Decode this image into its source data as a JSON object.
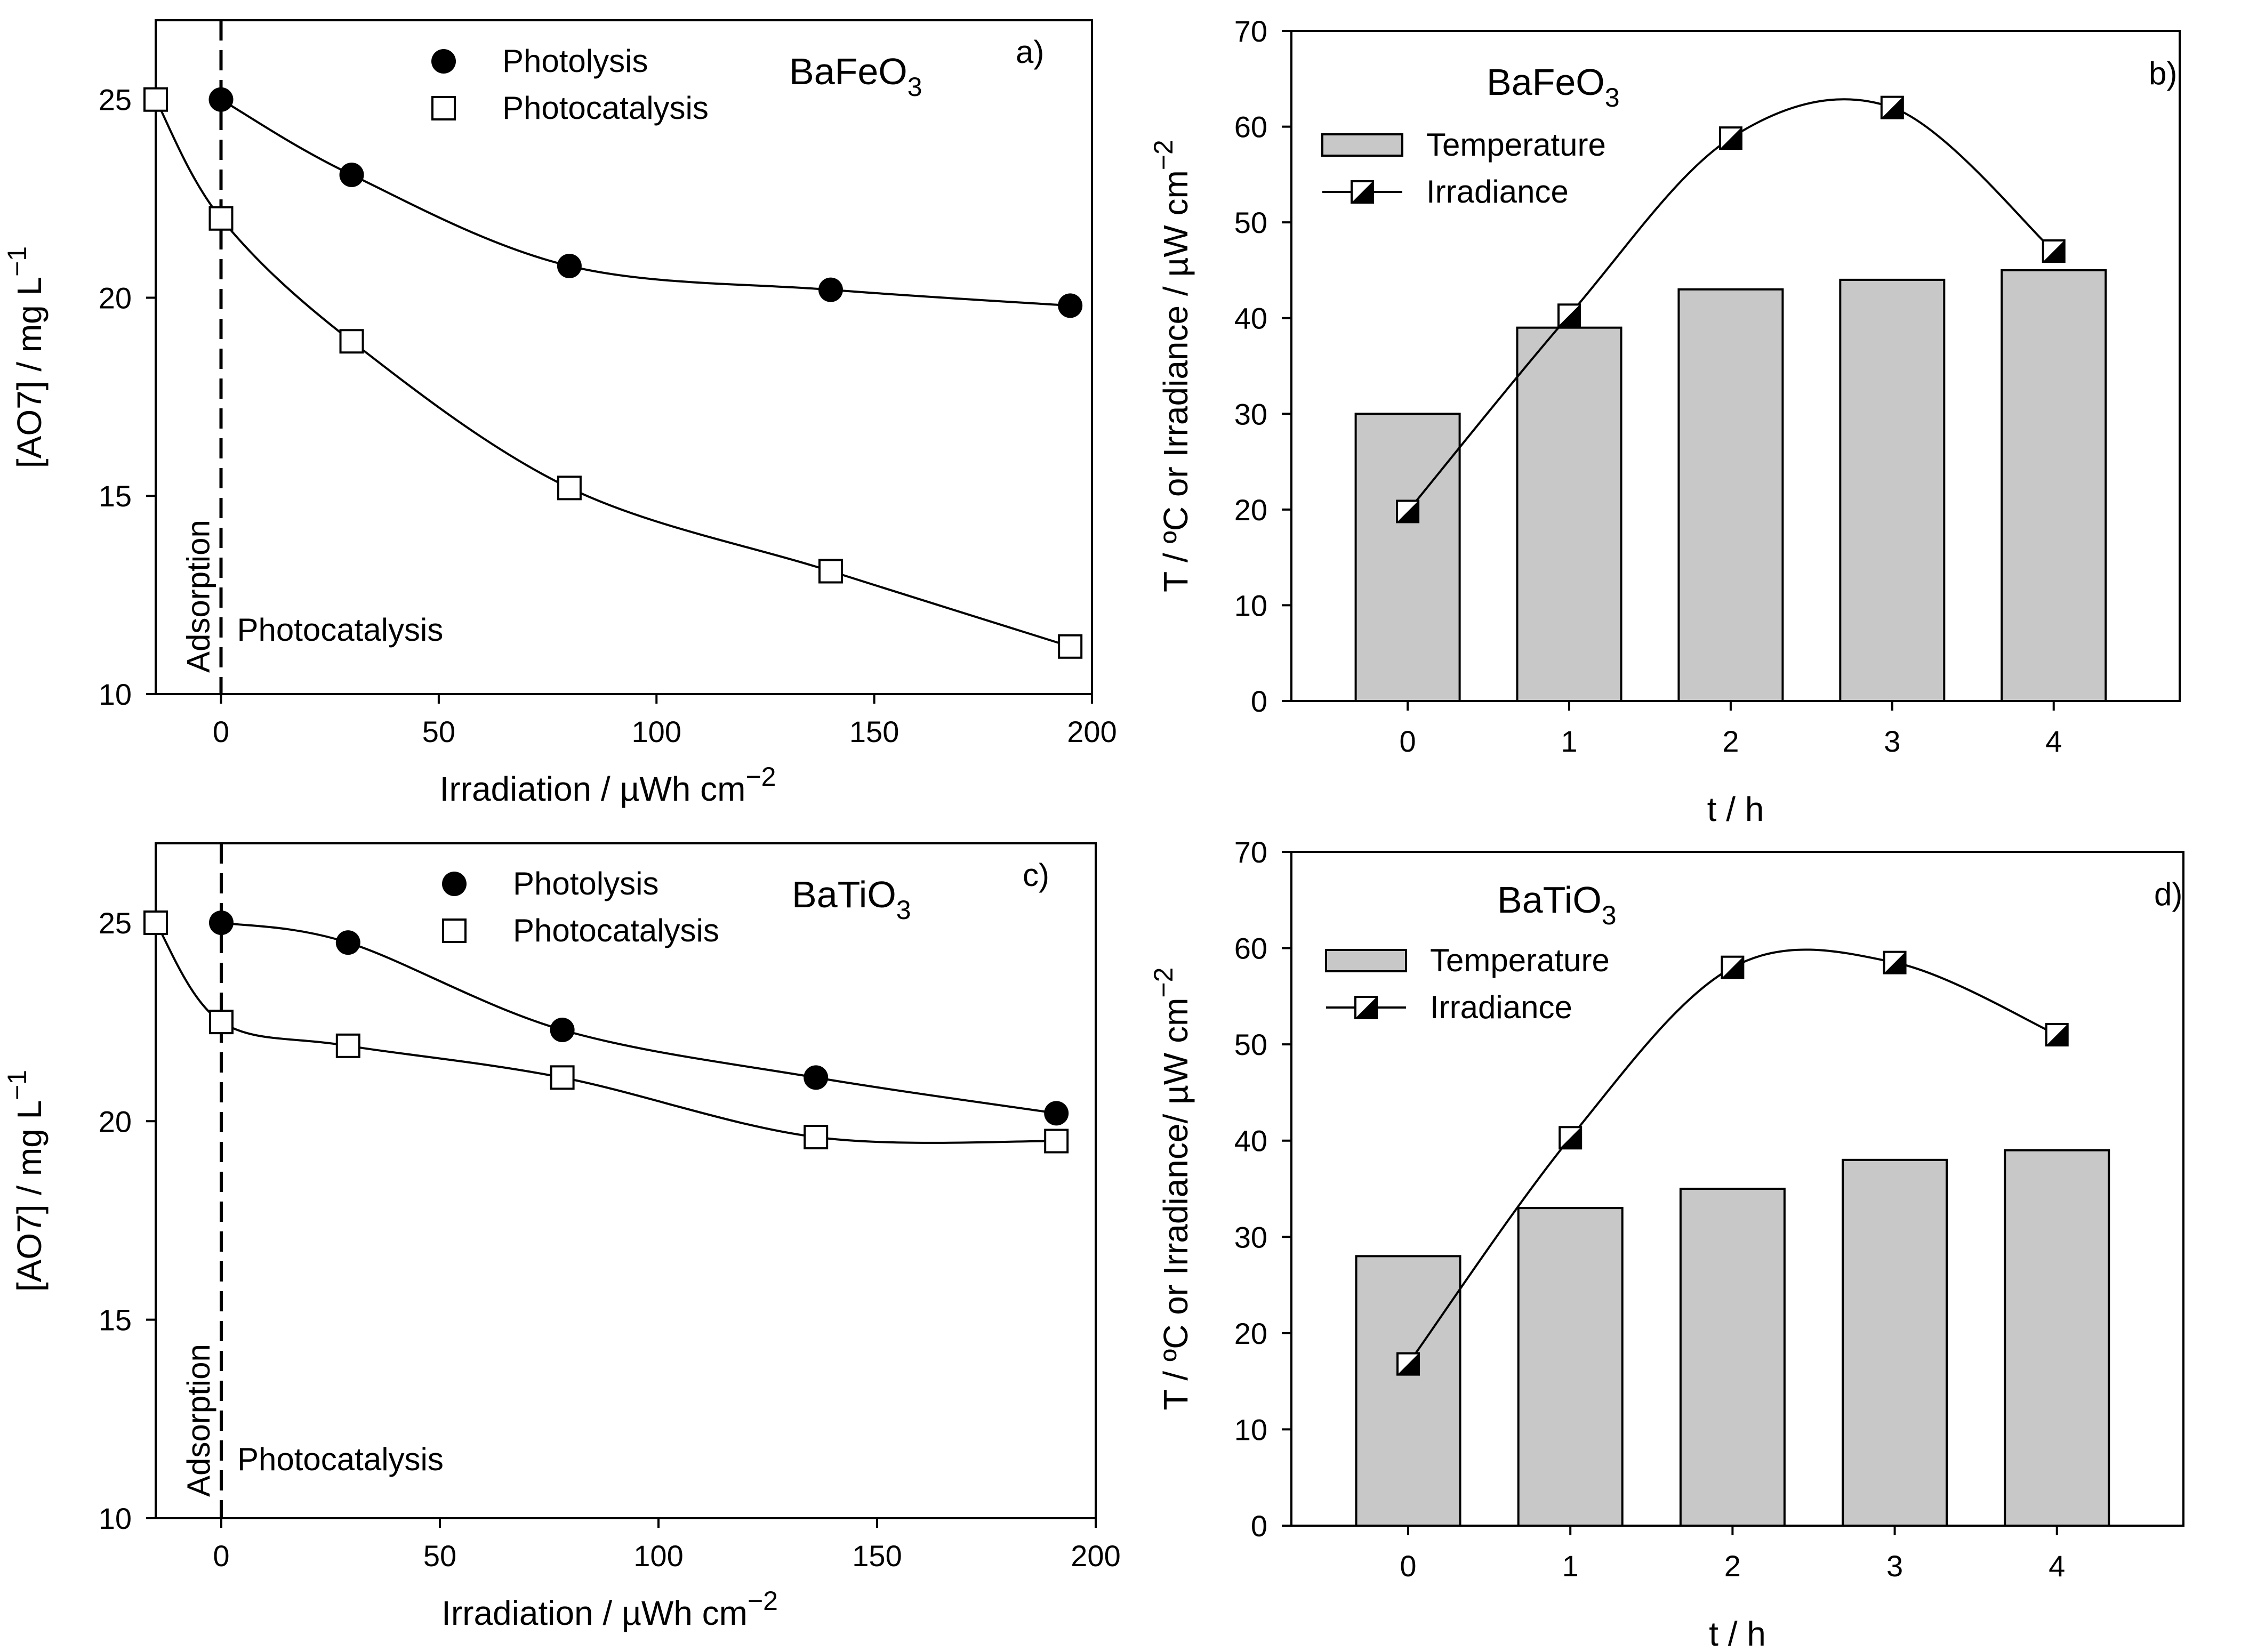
{
  "chart_data": [
    {
      "panel": "a",
      "panel_label": "a)",
      "type": "scatter",
      "material": "BaFeO",
      "material_sub": "3",
      "xlabel": "Irradiation / µWh cm",
      "xlabel_sup": "−2",
      "ylabel": "[AO7] / mg L",
      "ylabel_sup": "−1",
      "xlim": [
        -15,
        200
      ],
      "ylim": [
        10,
        27
      ],
      "xticks": [
        "0",
        "50",
        "100",
        "150",
        "200"
      ],
      "yticks": [
        "10",
        "15",
        "20",
        "25"
      ],
      "annotations": {
        "left": "Adsorption",
        "right": "Photocatalysis"
      },
      "series": [
        {
          "name": "Photolysis",
          "marker": "filled-circle",
          "x": [
            0,
            30,
            80,
            140,
            195
          ],
          "y": [
            25.0,
            23.1,
            20.8,
            20.2,
            19.8
          ]
        },
        {
          "name": "Photocatalysis",
          "marker": "open-square",
          "x": [
            -15,
            0,
            30,
            80,
            140,
            195
          ],
          "y": [
            25.0,
            22.0,
            18.9,
            15.2,
            13.1,
            11.2
          ]
        }
      ]
    },
    {
      "panel": "b",
      "panel_label": "b)",
      "type": "bar",
      "material": "BaFeO",
      "material_sub": "3",
      "xlabel": "t / h",
      "ylabel": "T / ºC  or  Irradiance / µW cm",
      "ylabel_sup": "−2",
      "ylim": [
        0,
        70
      ],
      "categories": [
        "0",
        "1",
        "2",
        "3",
        "4"
      ],
      "yticks": [
        "0",
        "10",
        "20",
        "30",
        "40",
        "50",
        "60",
        "70"
      ],
      "series": [
        {
          "name": "Temperature",
          "kind": "bar",
          "values": [
            30,
            39,
            43,
            44,
            45
          ]
        },
        {
          "name": "Irradiance",
          "kind": "line",
          "marker": "half-filled-square",
          "values": [
            19.8,
            40.3,
            58.8,
            62.0,
            47.0
          ]
        }
      ]
    },
    {
      "panel": "c",
      "panel_label": "c)",
      "type": "scatter",
      "material": "BaTiO",
      "material_sub": "3",
      "xlabel": "Irradiation / µWh cm",
      "xlabel_sup": "−2",
      "ylabel": "[AO7] / mg L",
      "ylabel_sup": "−1",
      "xlim": [
        -15,
        200
      ],
      "ylim": [
        10,
        27
      ],
      "xticks": [
        "0",
        "50",
        "100",
        "150",
        "200"
      ],
      "yticks": [
        "10",
        "15",
        "20",
        "25"
      ],
      "annotations": {
        "left": "Adsorption",
        "right": "Photocatalysis"
      },
      "series": [
        {
          "name": "Photolysis",
          "marker": "filled-circle",
          "x": [
            0,
            29,
            78,
            136,
            191
          ],
          "y": [
            25.0,
            24.5,
            22.3,
            21.1,
            20.2
          ]
        },
        {
          "name": "Photocatalysis",
          "marker": "open-square",
          "x": [
            -15,
            0,
            29,
            78,
            136,
            191
          ],
          "y": [
            25.0,
            22.5,
            21.9,
            21.1,
            19.6,
            19.5
          ]
        }
      ]
    },
    {
      "panel": "d",
      "panel_label": "d)",
      "type": "bar",
      "material": "BaTiO",
      "material_sub": "3",
      "xlabel": "t / h",
      "ylabel": "T / ºC  or  Irradiance/ µW cm",
      "ylabel_sup": "−2",
      "ylim": [
        0,
        70
      ],
      "categories": [
        "0",
        "1",
        "2",
        "3",
        "4"
      ],
      "yticks": [
        "0",
        "10",
        "20",
        "30",
        "40",
        "50",
        "60",
        "70"
      ],
      "series": [
        {
          "name": "Temperature",
          "kind": "bar",
          "values": [
            28,
            33,
            35,
            38,
            39
          ]
        },
        {
          "name": "Irradiance",
          "kind": "line",
          "marker": "half-filled-square",
          "values": [
            16.8,
            40.3,
            58.0,
            58.5,
            51.0
          ]
        }
      ]
    }
  ],
  "colors": {
    "bar_fill": "#c8c8c8",
    "ink": "#000000",
    "background": "#ffffff"
  }
}
